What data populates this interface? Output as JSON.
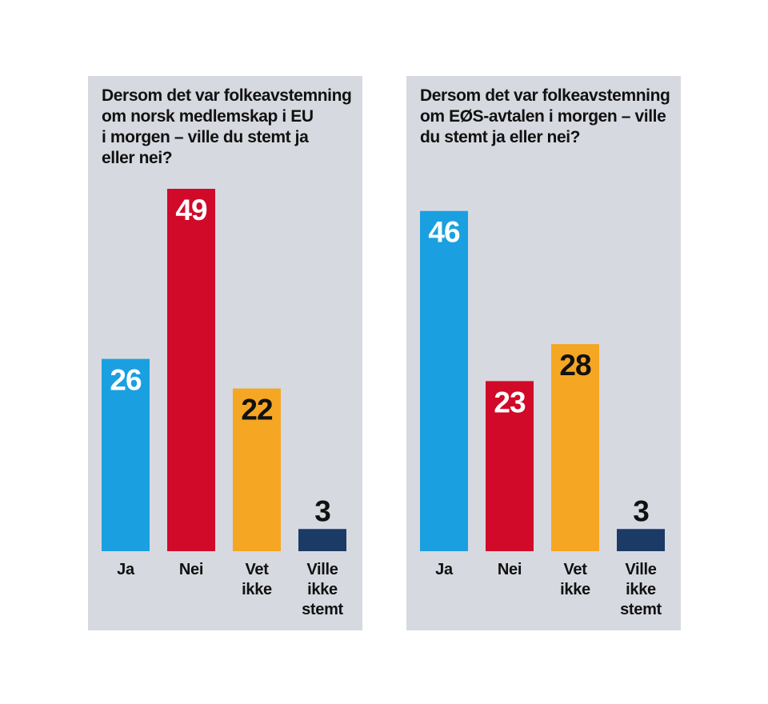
{
  "colors": {
    "panel_bg": "#d7d9e0",
    "ja": "#1aa0e0",
    "nei": "#d00a28",
    "vet_ikke": "#f5a623",
    "ville_ikke_stemt": "#1b3a66",
    "value_dark": "#111111",
    "value_light": "#ffffff"
  },
  "chart_data": [
    {
      "type": "bar",
      "title": "Dersom det var folkeavstemning\nom norsk medlemskap i EU\ni morgen – ville du stemt ja\neller nei?",
      "categories": [
        "Ja",
        "Nei",
        "Vet ikke",
        "Ville ikke stemt"
      ],
      "category_lines": [
        [
          "Ja"
        ],
        [
          "Nei"
        ],
        [
          "Vet",
          "ikke"
        ],
        [
          "Ville",
          "ikke",
          "stemt"
        ]
      ],
      "values": [
        26,
        49,
        22,
        3
      ],
      "ylim": [
        0,
        49
      ],
      "xlabel": "",
      "ylabel": ""
    },
    {
      "type": "bar",
      "title": "Dersom det var folkeavstemning\nom EØS-avtalen i morgen – ville\ndu stemt ja eller nei?",
      "categories": [
        "Ja",
        "Nei",
        "Vet ikke",
        "Ville ikke stemt"
      ],
      "category_lines": [
        [
          "Ja"
        ],
        [
          "Nei"
        ],
        [
          "Vet",
          "ikke"
        ],
        [
          "Ville",
          "ikke",
          "stemt"
        ]
      ],
      "values": [
        46,
        23,
        28,
        3
      ],
      "ylim": [
        0,
        49
      ],
      "xlabel": "",
      "ylabel": ""
    }
  ]
}
